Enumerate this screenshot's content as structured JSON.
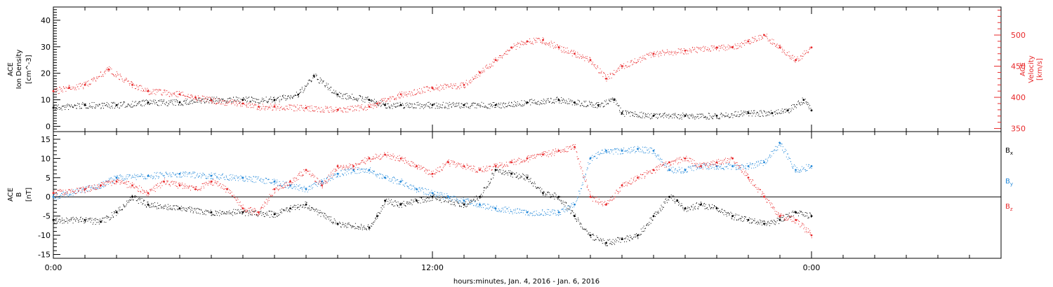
{
  "x_axis": {
    "title": "hours:minutes, Jan.  4, 2016 - Jan.  6, 2016",
    "tick_labels": [
      "0:00",
      "12:00",
      "0:00"
    ],
    "tick_hours": [
      0,
      24,
      48
    ],
    "range_hours": [
      0,
      60
    ],
    "minor_tick_interval_hours": 2
  },
  "colors": {
    "black": "#000000",
    "red": "#e8292b",
    "blue": "#1f86d8"
  },
  "chart_data": [
    {
      "type": "scatter",
      "panel": "plasma",
      "ylabel_lines": [
        "ACE",
        "Ion Density",
        "[cm^-3]"
      ],
      "ylim": [
        -2,
        45
      ],
      "yticks": [
        0,
        10,
        20,
        30,
        40
      ],
      "ylabel2_lines": [
        "ACE",
        "Velocity",
        "[km/s]"
      ],
      "y2lim": [
        345,
        545
      ],
      "y2ticks": [
        350,
        400,
        450,
        500
      ],
      "grid": false,
      "series": [
        {
          "axis": "left",
          "color": "#000000",
          "x": [
            0,
            2,
            4,
            6,
            8,
            10,
            12,
            14,
            15.5,
            16.5,
            18,
            20,
            21,
            22,
            24,
            26,
            28,
            30,
            32,
            33,
            34.5,
            35.5,
            36,
            38,
            40,
            42,
            44,
            45.5,
            46.5,
            47.5,
            48
          ],
          "y": [
            7,
            8,
            8,
            9,
            9,
            10,
            10,
            10,
            12,
            19,
            12,
            10,
            8,
            8,
            8,
            8,
            8,
            9,
            10,
            9,
            8,
            10,
            5,
            4,
            4,
            4,
            5,
            5,
            6,
            10,
            6
          ]
        },
        {
          "axis": "right",
          "color": "#e8292b",
          "x": [
            0,
            1,
            2,
            3.5,
            5,
            6,
            8,
            9,
            10,
            12,
            13,
            14,
            16,
            18,
            20,
            20.5,
            22,
            24,
            26,
            27,
            28,
            29,
            30,
            31,
            32,
            33,
            34,
            35,
            36,
            38,
            40,
            42,
            43,
            44,
            45,
            46,
            47,
            48
          ],
          "y": [
            410,
            415,
            420,
            445,
            420,
            410,
            405,
            400,
            395,
            390,
            385,
            385,
            383,
            380,
            385,
            390,
            405,
            415,
            420,
            440,
            460,
            480,
            490,
            492,
            480,
            470,
            460,
            430,
            450,
            470,
            475,
            480,
            480,
            490,
            500,
            480,
            460,
            480
          ]
        }
      ]
    },
    {
      "type": "scatter",
      "panel": "magnetic-field",
      "ylabel_lines": [
        "ACE",
        "B",
        "[nT]"
      ],
      "ylim": [
        -16,
        17
      ],
      "yticks": [
        -15,
        -10,
        -5,
        0,
        5,
        10,
        15
      ],
      "zero_line": true,
      "grid": false,
      "series": [
        {
          "name": "Bx",
          "color": "#000000",
          "x": [
            0,
            2,
            3,
            4,
            5,
            6,
            8,
            10,
            12,
            14,
            15,
            16,
            18,
            20,
            20.5,
            21,
            22,
            23,
            24,
            26,
            27,
            28,
            29,
            30,
            31,
            32,
            33,
            34,
            35,
            36,
            37,
            38,
            39,
            39.5,
            40,
            41,
            42,
            43,
            44,
            45,
            46,
            47,
            48
          ],
          "y": [
            -6,
            -6,
            -6.5,
            -4,
            0,
            -2,
            -3,
            -4,
            -4,
            -4.5,
            -3,
            -2,
            -7,
            -8,
            -5,
            -1,
            -2,
            -1,
            0,
            -2,
            0,
            7,
            6,
            5,
            1,
            0,
            -5,
            -10,
            -12,
            -11,
            -10,
            -5,
            0,
            -1,
            -3,
            -2,
            -3,
            -5,
            -6,
            -7,
            -6,
            -4,
            -5
          ]
        },
        {
          "name": "By",
          "color": "#1f86d8",
          "x": [
            0,
            2,
            3,
            4,
            6,
            8,
            10,
            12,
            14,
            15,
            16,
            17,
            18,
            19,
            20,
            21,
            22,
            23,
            24,
            25,
            26,
            27,
            28,
            30,
            32,
            33,
            34,
            35,
            36,
            37,
            38,
            39,
            40,
            41,
            42,
            43,
            44,
            45,
            46,
            47,
            48
          ],
          "y": [
            0,
            2,
            3,
            5,
            5.5,
            6,
            5.5,
            5,
            4,
            3,
            2,
            4,
            6,
            7,
            7,
            5,
            4,
            2,
            1,
            0,
            -1,
            -2,
            -3,
            -4,
            -4,
            -2,
            10,
            12,
            12,
            12.5,
            12,
            7,
            7,
            8,
            8,
            8,
            8,
            9,
            14,
            7,
            8
          ]
        },
        {
          "name": "Bz",
          "color": "#e8292b",
          "x": [
            0,
            2,
            3,
            4,
            5,
            6,
            7,
            8,
            9,
            10,
            11,
            12,
            13,
            14,
            15,
            16,
            17,
            18,
            19,
            20,
            21,
            22,
            23,
            24,
            25,
            26,
            27,
            28,
            29,
            30,
            31,
            32,
            33,
            34,
            35,
            36,
            37,
            38,
            39,
            40,
            41,
            42,
            43,
            44,
            45,
            46,
            47,
            48
          ],
          "y": [
            1,
            2,
            3,
            4,
            3,
            1,
            4,
            3,
            2,
            4,
            2,
            -3,
            -4,
            2,
            4,
            7,
            3,
            8,
            8,
            10,
            11,
            10,
            8,
            6,
            9,
            8,
            7,
            8,
            9,
            10,
            11,
            12,
            13,
            0,
            -2,
            3,
            5,
            7,
            9,
            10,
            8,
            9,
            10,
            5,
            0,
            -5,
            -6,
            -10
          ]
        }
      ]
    }
  ]
}
